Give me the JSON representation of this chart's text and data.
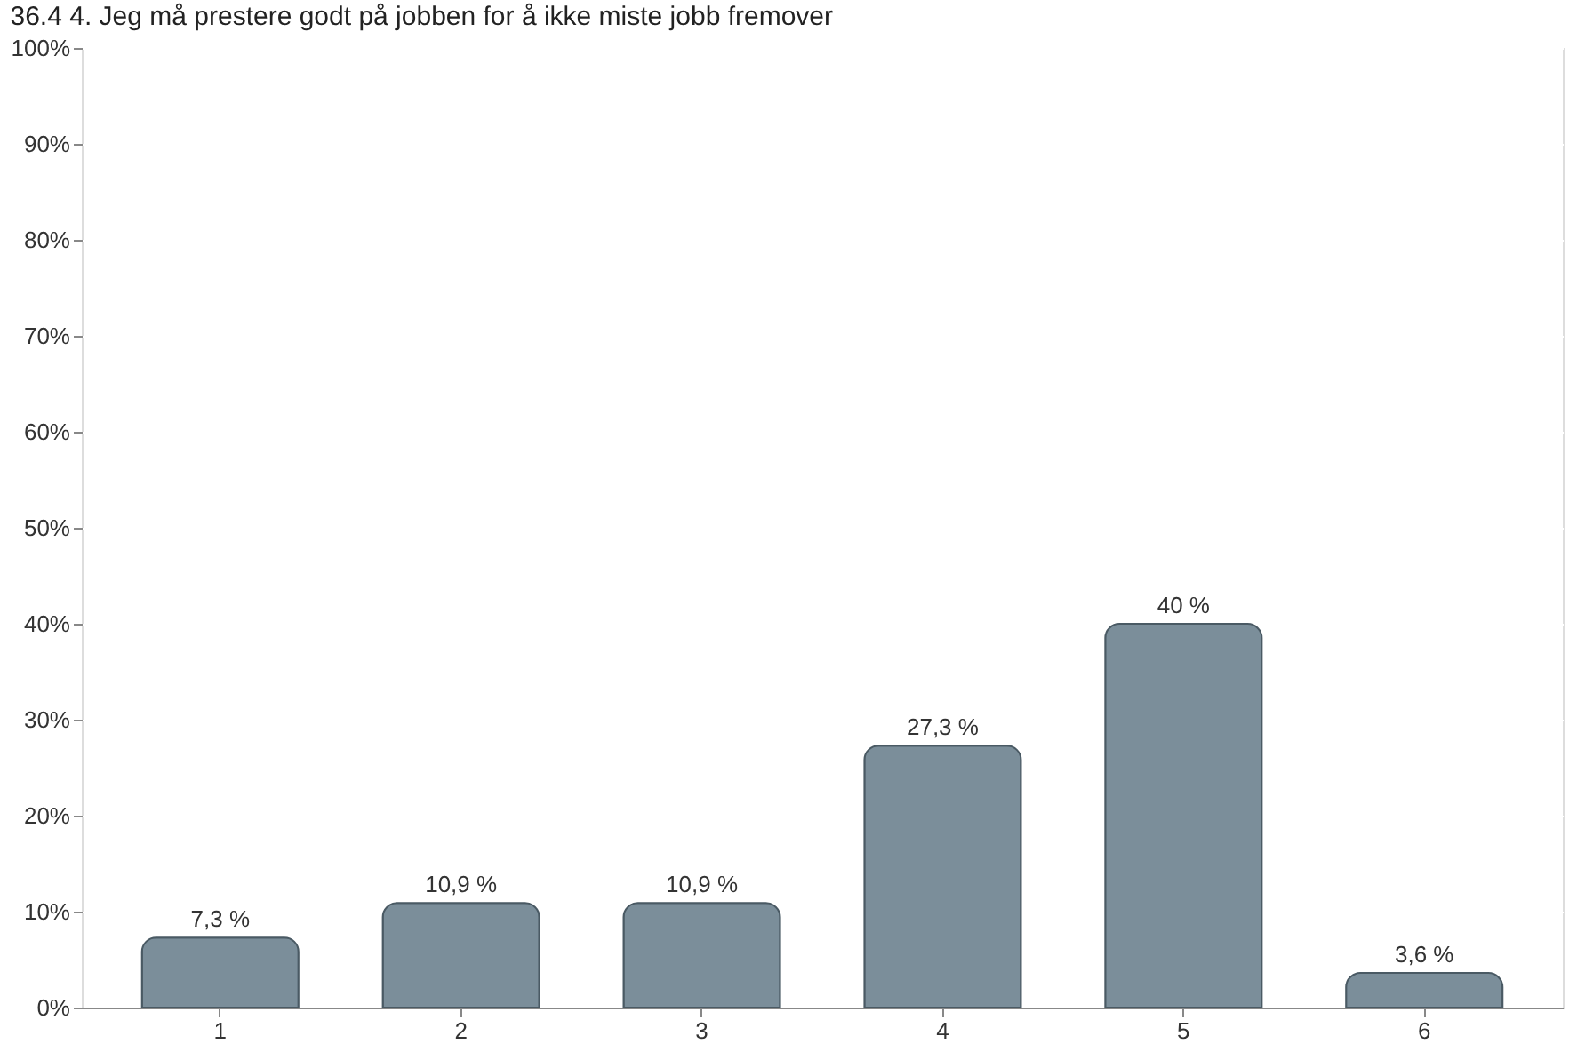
{
  "chart_data": {
    "type": "bar",
    "title": "36.4 4. Jeg må prestere godt på jobben for å ikke miste jobb fremover",
    "categories": [
      "1",
      "2",
      "3",
      "4",
      "5",
      "6"
    ],
    "values": [
      7.3,
      10.9,
      10.9,
      27.3,
      40,
      3.6
    ],
    "value_labels": [
      "7,3 %",
      "10,9 %",
      "10,9 %",
      "27,3 %",
      "40 %",
      "3,6 %"
    ],
    "color": "#7b8e9a",
    "ylim": [
      0,
      100
    ],
    "yticks": [
      {
        "value": 0,
        "label": "0%"
      },
      {
        "value": 10,
        "label": "10%"
      },
      {
        "value": 20,
        "label": "20%"
      },
      {
        "value": 30,
        "label": "30%"
      },
      {
        "value": 40,
        "label": "40%"
      },
      {
        "value": 50,
        "label": "50%"
      },
      {
        "value": 60,
        "label": "60%"
      },
      {
        "value": 70,
        "label": "70%"
      },
      {
        "value": 80,
        "label": "80%"
      },
      {
        "value": 90,
        "label": "90%"
      },
      {
        "value": 100,
        "label": "100%"
      }
    ],
    "grid": true
  }
}
